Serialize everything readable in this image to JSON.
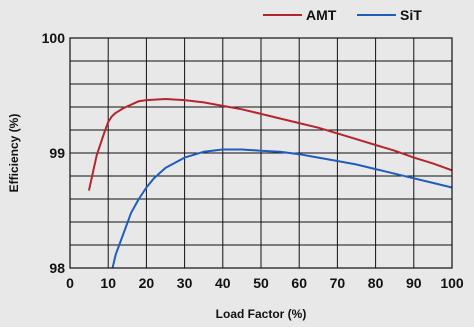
{
  "chart_data": {
    "type": "line",
    "title": "",
    "xlabel": "Load Factor (%)",
    "ylabel": "Efficiency (%)",
    "xlim": [
      0,
      100
    ],
    "ylim": [
      98,
      100
    ],
    "x_ticks": [
      0,
      10,
      20,
      30,
      40,
      50,
      60,
      70,
      80,
      90,
      100
    ],
    "y_tick_labels": [
      {
        "value": 98,
        "label": "98"
      },
      {
        "value": 99,
        "label": "99"
      },
      {
        "value": 100,
        "label": "100"
      }
    ],
    "grid": true,
    "legend_position": "top-right",
    "series": [
      {
        "name": "AMT",
        "color": "#b5262c",
        "x": [
          5,
          7,
          9,
          10,
          11,
          12,
          14,
          16,
          18,
          20,
          25,
          30,
          35,
          40,
          45,
          50,
          55,
          60,
          65,
          70,
          75,
          80,
          85,
          90,
          95,
          100
        ],
        "y": [
          98.68,
          98.98,
          99.18,
          99.27,
          99.32,
          99.35,
          99.39,
          99.42,
          99.45,
          99.46,
          99.47,
          99.46,
          99.44,
          99.41,
          99.38,
          99.34,
          99.3,
          99.26,
          99.22,
          99.17,
          99.12,
          99.07,
          99.02,
          98.96,
          98.91,
          98.85
        ]
      },
      {
        "name": "SiT",
        "color": "#1f5dbd",
        "x": [
          11,
          12,
          14,
          16,
          18,
          20,
          22,
          25,
          30,
          35,
          40,
          45,
          50,
          55,
          60,
          65,
          70,
          75,
          80,
          85,
          90,
          95,
          100
        ],
        "y": [
          97.98,
          98.12,
          98.3,
          98.48,
          98.6,
          98.7,
          98.78,
          98.87,
          98.96,
          99.01,
          99.03,
          99.03,
          99.02,
          99.01,
          98.99,
          98.96,
          98.93,
          98.9,
          98.86,
          98.82,
          98.78,
          98.74,
          98.7
        ]
      }
    ]
  }
}
